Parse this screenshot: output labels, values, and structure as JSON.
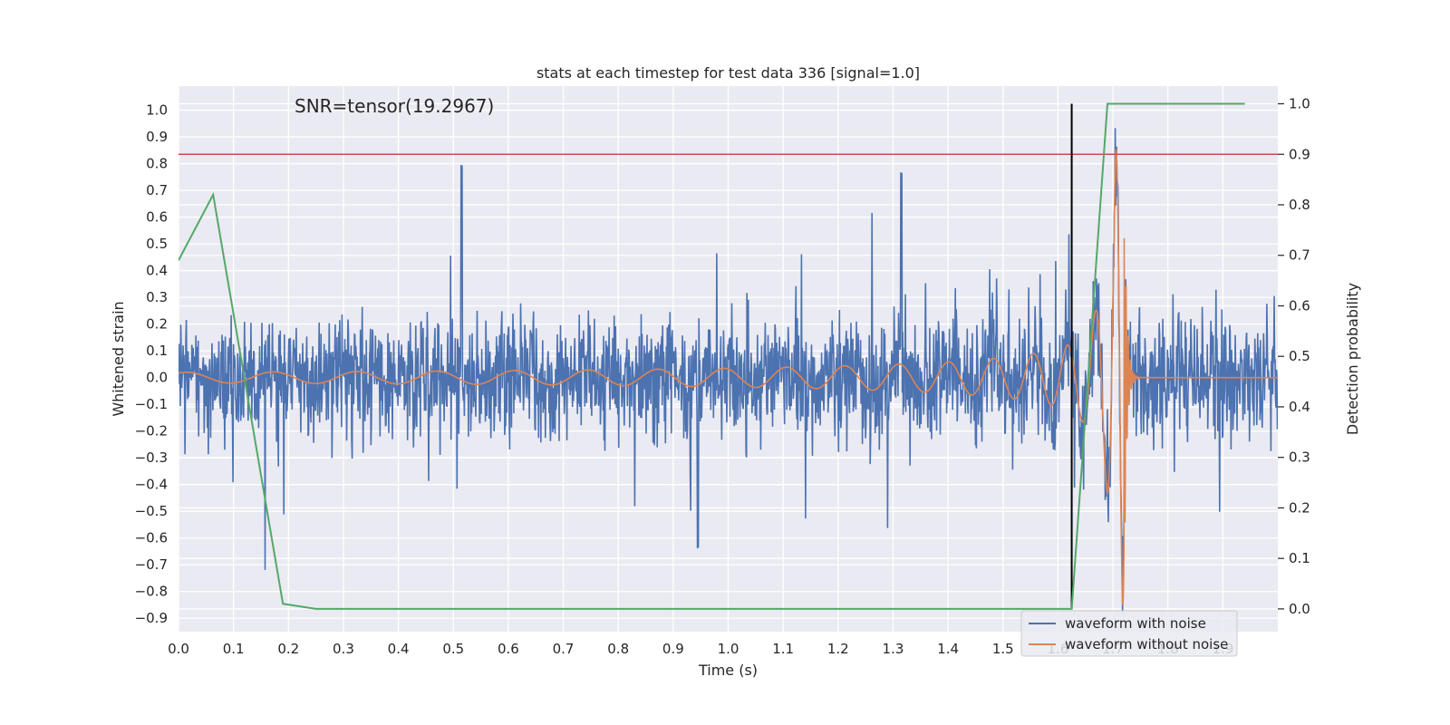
{
  "chart_data": {
    "type": "line",
    "title": "stats at each timestep for test data 336 [signal=1.0]",
    "xlabel": "Time (s)",
    "ylabel": "Whitened strain",
    "y2label": "Detection probability",
    "annotation": "SNR=tensor(19.2967)",
    "xlim": [
      0.0,
      2.0
    ],
    "ylim": [
      -0.95,
      1.09
    ],
    "y2lim": [
      -0.045,
      1.035
    ],
    "xticks": [
      "0.0",
      "0.1",
      "0.2",
      "0.3",
      "0.4",
      "0.5",
      "0.6",
      "0.7",
      "0.8",
      "0.9",
      "1.0",
      "1.1",
      "1.2",
      "1.3",
      "1.4",
      "1.5",
      "1.6",
      "1.7",
      "1.8",
      "1.9"
    ],
    "yticks": [
      "−0.9",
      "−0.8",
      "−0.7",
      "−0.6",
      "−0.5",
      "−0.4",
      "−0.3",
      "−0.2",
      "−0.1",
      "0.0",
      "0.1",
      "0.2",
      "0.3",
      "0.4",
      "0.5",
      "0.6",
      "0.7",
      "0.8",
      "0.9",
      "1.0"
    ],
    "y2ticks": [
      "0.0",
      "0.1",
      "0.2",
      "0.3",
      "0.4",
      "0.5",
      "0.6",
      "0.7",
      "0.8",
      "0.9",
      "1.0"
    ],
    "legend": {
      "placement": "lower-right",
      "entries": [
        "waveform with noise",
        "waveform without noise"
      ]
    },
    "colors": {
      "noise": "#4c72b0",
      "clean": "#dd8452",
      "prob": "#55a868",
      "threshold": "#c44e52",
      "marker": "#000000",
      "background": "#eaeaf2"
    },
    "series": [
      {
        "name": "waveform with noise",
        "axis": "left",
        "note_generated": "dense noise trace, amplitude ~±0.3 with spikes up to 0.8 / -0.6"
      },
      {
        "name": "waveform without noise",
        "axis": "left",
        "chirp": {
          "t_merger": 1.72,
          "amp_start": 0.02,
          "amp_peak": 0.85
        }
      },
      {
        "name": "detection probability",
        "axis": "right",
        "x": [
          0.0,
          0.063,
          0.19,
          0.25,
          1.625,
          1.69,
          1.94
        ],
        "y": [
          0.69,
          0.82,
          0.01,
          0.0,
          0.0,
          1.0,
          1.0
        ]
      }
    ],
    "threshold_y2": 0.9,
    "vertical_line_x": 1.625
  }
}
